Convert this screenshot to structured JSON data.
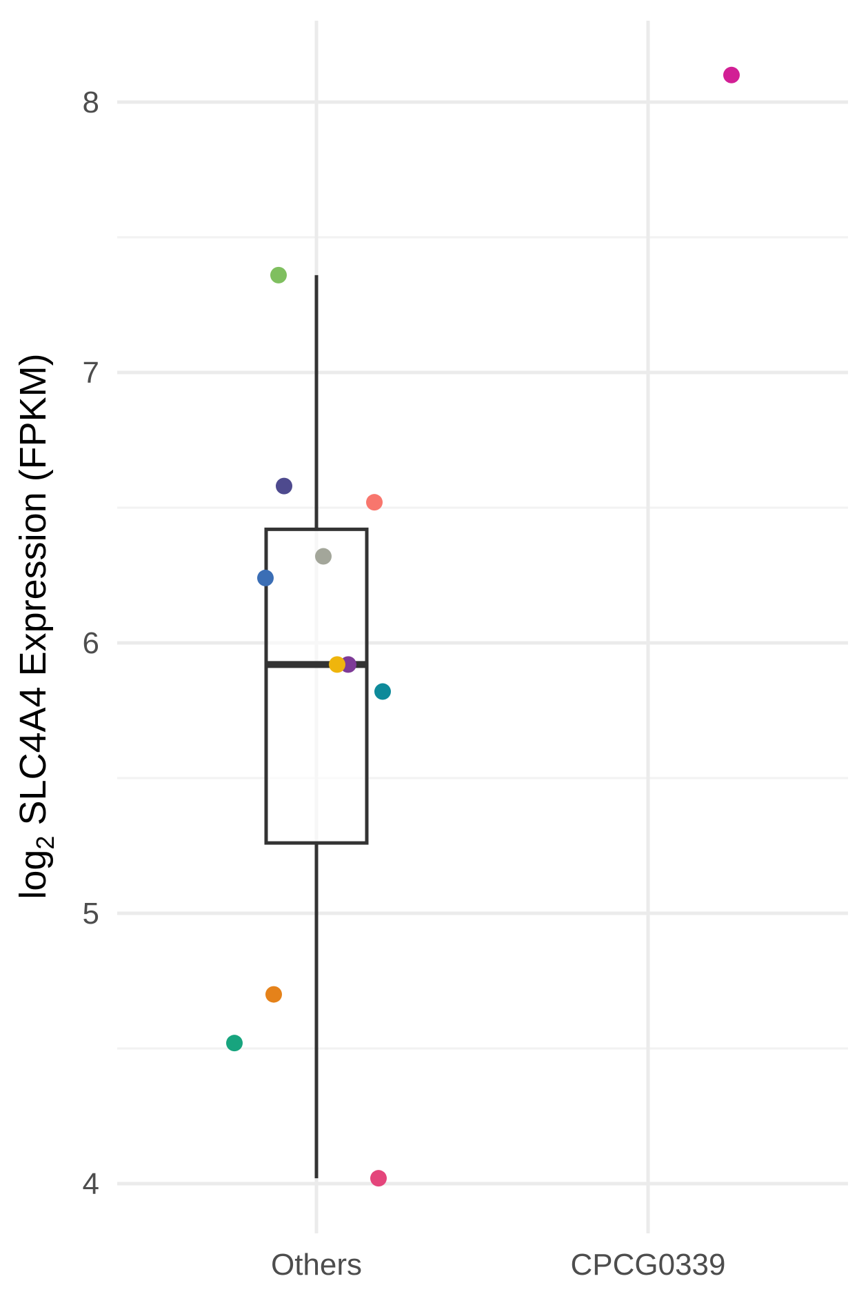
{
  "chart_data": {
    "type": "scatter",
    "overlay": "boxplot",
    "ylabel": {
      "prefix": "log",
      "subscript": "2",
      "suffix": " SLC4A4 Expression (FPKM)"
    },
    "xlabel": "",
    "categories": [
      "Others",
      "CPCG0339"
    ],
    "ylim": [
      3.8,
      8.3
    ],
    "y_ticks": [
      4,
      5,
      6,
      7,
      8
    ],
    "y_minor_ticks": [
      4.5,
      5.5,
      6.5,
      7.5
    ],
    "grid": true,
    "legend": "none",
    "boxplot": {
      "category": "Others",
      "whisker_low": 4.02,
      "q1": 5.26,
      "median": 5.92,
      "q3": 6.42,
      "whisker_high": 7.36
    },
    "points": [
      {
        "category": "Others",
        "y": 7.36,
        "color": "#7fbf5f"
      },
      {
        "category": "Others",
        "y": 6.58,
        "color": "#4e4a8e"
      },
      {
        "category": "Others",
        "y": 6.52,
        "color": "#f8766d"
      },
      {
        "category": "Others",
        "y": 6.32,
        "color": "#a3a69a"
      },
      {
        "category": "Others",
        "y": 6.24,
        "color": "#3b6eb5"
      },
      {
        "category": "Others",
        "y": 5.92,
        "color": "#7e3b97"
      },
      {
        "category": "Others",
        "y": 5.92,
        "color": "#efb50c"
      },
      {
        "category": "Others",
        "y": 5.82,
        "color": "#0e8a9a"
      },
      {
        "category": "Others",
        "y": 4.7,
        "color": "#e5821a"
      },
      {
        "category": "Others",
        "y": 4.52,
        "color": "#17a47e"
      },
      {
        "category": "Others",
        "y": 4.02,
        "color": "#e4457b"
      },
      {
        "category": "CPCG0339",
        "y": 8.1,
        "color": "#d21f95"
      }
    ],
    "colors": {
      "grid_major": "#ebebeb",
      "grid_minor": "#f2f2f2",
      "box": "#333333"
    }
  }
}
